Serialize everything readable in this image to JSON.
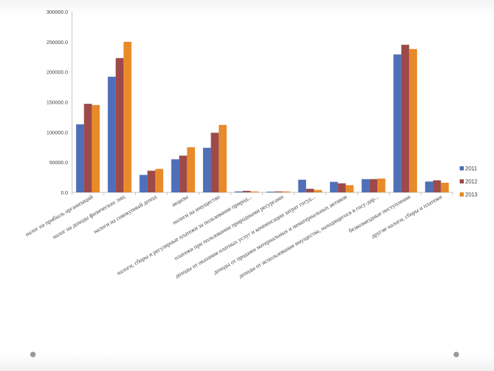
{
  "chart_data": {
    "type": "bar",
    "categories": [
      "налог на прибыль организаций",
      "налог на доходы физических лиц",
      "налоги на совокупный доход",
      "акцизы",
      "налоги на имущество",
      "налоги, сборы и регулярные платежи за пользование природ...",
      "платежи при пользовании природными ресурсами",
      "доходы от оказания платных услуг и компенсации затрат госуд...",
      "доходы от продажи материальных и нематериальных активов",
      "доходы от использования имущества, находящегося в госу-дар...",
      "безвозмездные поступления",
      "другие налоги, сборы и платежи"
    ],
    "series": [
      {
        "name": "2011",
        "color": "#4f6fb8",
        "values": [
          113000,
          192000,
          29000,
          55000,
          74000,
          1500,
          1200,
          21000,
          17500,
          22000,
          229000,
          18000
        ]
      },
      {
        "name": "2012",
        "color": "#9c4a4a",
        "values": [
          147000,
          223000,
          36000,
          61000,
          99000,
          2500,
          1500,
          6000,
          15000,
          22000,
          245000,
          20000
        ]
      },
      {
        "name": "2013",
        "color": "#e98a2a",
        "values": [
          145000,
          250000,
          39000,
          75000,
          112000,
          1500,
          1500,
          4000,
          12000,
          23000,
          238000,
          16000
        ]
      }
    ],
    "y_ticks": [
      "0.0",
      "50000.0",
      "100000.0",
      "150000.0",
      "200000.0",
      "250000.0",
      "300000.0"
    ],
    "ylim": [
      0,
      300000
    ],
    "grid": false,
    "legend_position": "right",
    "title": "",
    "xlabel": "",
    "ylabel": ""
  }
}
